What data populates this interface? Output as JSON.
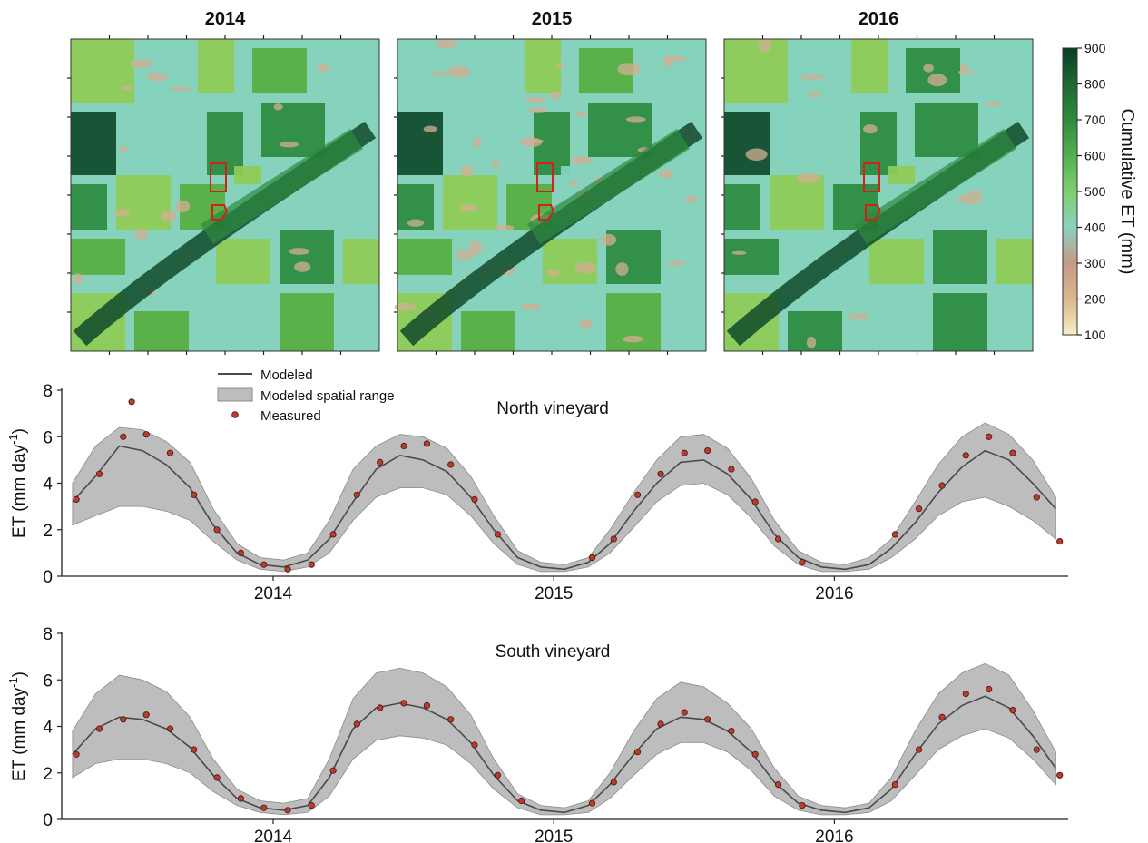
{
  "maps": {
    "panels": [
      {
        "title": "2014"
      },
      {
        "title": "2015"
      },
      {
        "title": "2016"
      }
    ],
    "colorbar": {
      "title": "Cumulative ET (mm)",
      "min": 100,
      "max": 900,
      "ticks": [
        "900",
        "800",
        "700",
        "600",
        "500",
        "400",
        "300",
        "200",
        "100"
      ],
      "colors": [
        "#f6f0c4",
        "#d9b78f",
        "#c79a84",
        "#88d2c0",
        "#7fcf6f",
        "#52b050",
        "#2f8b3c",
        "#1c6a32",
        "#0b3e25"
      ]
    },
    "outline_color": "#d32018",
    "palette": {
      "dark": "#0f4a2a",
      "mid": "#2c8a3e",
      "green": "#57ad3f",
      "light": "#8fcc55",
      "teal": "#86d2bd",
      "tan": "#d3ad93"
    }
  },
  "legend": {
    "modeled": "Modeled",
    "range": "Modeled spatial range",
    "measured": "Measured"
  },
  "colors": {
    "modeled_line": "#4a4a4a",
    "range_fill": "#bdbdbd",
    "range_edge": "#8a8a8a",
    "measured_fill": "#c0392b",
    "measured_edge": "#3a1a10"
  },
  "chart_data": [
    {
      "type": "line",
      "title": "North vineyard",
      "ylabel_main": "ET (mm day",
      "ylabel_sup": "-1",
      "ylabel_end": ")",
      "xlim": [
        "2013-04-01",
        "2016-10-31"
      ],
      "ylim": [
        0,
        8
      ],
      "yticks": [
        0,
        2,
        4,
        6,
        8
      ],
      "xtick_labels": [
        "2014",
        "2015",
        "2016"
      ],
      "xtick_dates": [
        "2014-01-01",
        "2015-01-01",
        "2016-01-01"
      ],
      "series": [
        {
          "name": "Modeled",
          "x": [
            "2013-04-15",
            "2013-05-15",
            "2013-06-15",
            "2013-07-15",
            "2013-08-15",
            "2013-09-15",
            "2013-10-15",
            "2013-11-15",
            "2013-12-15",
            "2014-01-15",
            "2014-02-15",
            "2014-03-15",
            "2014-04-15",
            "2014-05-15",
            "2014-06-15",
            "2014-07-15",
            "2014-08-15",
            "2014-09-15",
            "2014-10-15",
            "2014-11-15",
            "2014-12-15",
            "2015-01-15",
            "2015-02-15",
            "2015-03-15",
            "2015-04-15",
            "2015-05-15",
            "2015-06-15",
            "2015-07-15",
            "2015-08-15",
            "2015-09-15",
            "2015-10-15",
            "2015-11-15",
            "2015-12-15",
            "2016-01-15",
            "2016-02-15",
            "2016-03-15",
            "2016-04-15",
            "2016-05-15",
            "2016-06-15",
            "2016-07-15",
            "2016-08-15",
            "2016-09-15",
            "2016-10-15"
          ],
          "y": [
            3.2,
            4.3,
            5.6,
            5.4,
            4.8,
            3.8,
            2.2,
            1.0,
            0.5,
            0.4,
            0.7,
            1.6,
            3.2,
            4.6,
            5.2,
            5.0,
            4.5,
            3.4,
            2.0,
            0.8,
            0.4,
            0.3,
            0.6,
            1.4,
            2.8,
            4.0,
            4.9,
            5.0,
            4.4,
            3.3,
            1.8,
            0.8,
            0.4,
            0.3,
            0.5,
            1.2,
            2.3,
            3.6,
            4.7,
            5.4,
            5.0,
            4.0,
            2.9
          ]
        },
        {
          "name": "Modeled spatial range",
          "x": [
            "2013-04-15",
            "2013-05-15",
            "2013-06-15",
            "2013-07-15",
            "2013-08-15",
            "2013-09-15",
            "2013-10-15",
            "2013-11-15",
            "2013-12-15",
            "2014-01-15",
            "2014-02-15",
            "2014-03-15",
            "2014-04-15",
            "2014-05-15",
            "2014-06-15",
            "2014-07-15",
            "2014-08-15",
            "2014-09-15",
            "2014-10-15",
            "2014-11-15",
            "2014-12-15",
            "2015-01-15",
            "2015-02-15",
            "2015-03-15",
            "2015-04-15",
            "2015-05-15",
            "2015-06-15",
            "2015-07-15",
            "2015-08-15",
            "2015-09-15",
            "2015-10-15",
            "2015-11-15",
            "2015-12-15",
            "2016-01-15",
            "2016-02-15",
            "2016-03-15",
            "2016-04-15",
            "2016-05-15",
            "2016-06-15",
            "2016-07-15",
            "2016-08-15",
            "2016-09-15",
            "2016-10-15"
          ],
          "lower": [
            2.2,
            2.6,
            3.0,
            3.0,
            2.8,
            2.4,
            1.5,
            0.7,
            0.3,
            0.2,
            0.4,
            1.0,
            2.4,
            3.4,
            3.8,
            3.8,
            3.5,
            2.6,
            1.4,
            0.5,
            0.2,
            0.2,
            0.4,
            1.0,
            2.1,
            3.2,
            3.9,
            4.0,
            3.5,
            2.5,
            1.3,
            0.5,
            0.2,
            0.2,
            0.3,
            0.8,
            1.6,
            2.6,
            3.2,
            3.4,
            3.0,
            2.4,
            1.6
          ],
          "upper": [
            4.0,
            5.6,
            6.4,
            6.3,
            5.8,
            4.9,
            2.9,
            1.4,
            0.8,
            0.7,
            1.0,
            2.4,
            4.6,
            5.6,
            6.1,
            6.0,
            5.5,
            4.3,
            2.6,
            1.1,
            0.6,
            0.5,
            0.8,
            2.0,
            3.6,
            5.0,
            6.0,
            6.1,
            5.5,
            4.2,
            2.4,
            1.1,
            0.6,
            0.5,
            0.8,
            1.6,
            3.2,
            4.8,
            6.0,
            6.6,
            6.1,
            5.0,
            3.4
          ]
        },
        {
          "name": "Measured",
          "x": [
            "2013-04-20",
            "2013-05-20",
            "2013-06-20",
            "2013-07-01",
            "2013-07-20",
            "2013-08-20",
            "2013-09-20",
            "2013-10-20",
            "2013-11-20",
            "2013-12-20",
            "2014-01-20",
            "2014-02-20",
            "2014-03-20",
            "2014-04-20",
            "2014-05-20",
            "2014-06-20",
            "2014-07-20",
            "2014-08-20",
            "2014-09-20",
            "2014-10-20",
            "2015-02-20",
            "2015-03-20",
            "2015-04-20",
            "2015-05-20",
            "2015-06-20",
            "2015-07-20",
            "2015-08-20",
            "2015-09-20",
            "2015-10-20",
            "2015-11-20",
            "2016-03-20",
            "2016-04-20",
            "2016-05-20",
            "2016-06-20",
            "2016-07-20",
            "2016-08-20",
            "2016-09-20",
            "2016-10-20"
          ],
          "y": [
            3.3,
            4.4,
            6.0,
            7.5,
            6.1,
            5.3,
            3.5,
            2.0,
            1.0,
            0.5,
            0.3,
            0.5,
            1.8,
            3.5,
            4.9,
            5.6,
            5.7,
            4.8,
            3.3,
            1.8,
            0.8,
            1.6,
            3.5,
            4.4,
            5.3,
            5.4,
            4.6,
            3.2,
            1.6,
            0.6,
            1.8,
            2.9,
            3.9,
            5.2,
            6.0,
            5.3,
            3.4,
            1.5
          ]
        }
      ]
    },
    {
      "type": "line",
      "title": "South vineyard",
      "ylabel_main": "ET (mm day",
      "ylabel_sup": "-1",
      "ylabel_end": ")",
      "xlim": [
        "2013-04-01",
        "2016-10-31"
      ],
      "ylim": [
        0,
        8
      ],
      "yticks": [
        0,
        2,
        4,
        6,
        8
      ],
      "xtick_labels": [
        "2014",
        "2015",
        "2016"
      ],
      "xtick_dates": [
        "2014-01-01",
        "2015-01-01",
        "2016-01-01"
      ],
      "series": [
        {
          "name": "Modeled",
          "x": [
            "2013-04-15",
            "2013-05-15",
            "2013-06-15",
            "2013-07-15",
            "2013-08-15",
            "2013-09-15",
            "2013-10-15",
            "2013-11-15",
            "2013-12-15",
            "2014-01-15",
            "2014-02-15",
            "2014-03-15",
            "2014-04-15",
            "2014-05-15",
            "2014-06-15",
            "2014-07-15",
            "2014-08-15",
            "2014-09-15",
            "2014-10-15",
            "2014-11-15",
            "2014-12-15",
            "2015-01-15",
            "2015-02-15",
            "2015-03-15",
            "2015-04-15",
            "2015-05-15",
            "2015-06-15",
            "2015-07-15",
            "2015-08-15",
            "2015-09-15",
            "2015-10-15",
            "2015-11-15",
            "2015-12-15",
            "2016-01-15",
            "2016-02-15",
            "2016-03-15",
            "2016-04-15",
            "2016-05-15",
            "2016-06-15",
            "2016-07-15",
            "2016-08-15",
            "2016-09-15",
            "2016-10-15"
          ],
          "y": [
            2.8,
            3.9,
            4.4,
            4.3,
            3.9,
            3.1,
            1.9,
            0.9,
            0.5,
            0.4,
            0.6,
            1.8,
            3.9,
            4.8,
            5.0,
            4.8,
            4.3,
            3.3,
            1.9,
            0.8,
            0.4,
            0.3,
            0.6,
            1.5,
            2.8,
            3.9,
            4.4,
            4.3,
            3.8,
            2.9,
            1.6,
            0.7,
            0.4,
            0.3,
            0.5,
            1.3,
            2.8,
            4.1,
            4.9,
            5.3,
            4.8,
            3.6,
            2.2
          ]
        },
        {
          "name": "Modeled spatial range",
          "x": [
            "2013-04-15",
            "2013-05-15",
            "2013-06-15",
            "2013-07-15",
            "2013-08-15",
            "2013-09-15",
            "2013-10-15",
            "2013-11-15",
            "2013-12-15",
            "2014-01-15",
            "2014-02-15",
            "2014-03-15",
            "2014-04-15",
            "2014-05-15",
            "2014-06-15",
            "2014-07-15",
            "2014-08-15",
            "2014-09-15",
            "2014-10-15",
            "2014-11-15",
            "2014-12-15",
            "2015-01-15",
            "2015-02-15",
            "2015-03-15",
            "2015-04-15",
            "2015-05-15",
            "2015-06-15",
            "2015-07-15",
            "2015-08-15",
            "2015-09-15",
            "2015-10-15",
            "2015-11-15",
            "2015-12-15",
            "2016-01-15",
            "2016-02-15",
            "2016-03-15",
            "2016-04-15",
            "2016-05-15",
            "2016-06-15",
            "2016-07-15",
            "2016-08-15",
            "2016-09-15",
            "2016-10-15"
          ],
          "lower": [
            1.8,
            2.4,
            2.6,
            2.6,
            2.4,
            2.0,
            1.2,
            0.6,
            0.3,
            0.2,
            0.3,
            1.0,
            2.6,
            3.4,
            3.6,
            3.5,
            3.2,
            2.4,
            1.3,
            0.5,
            0.2,
            0.2,
            0.3,
            0.9,
            1.9,
            2.8,
            3.3,
            3.3,
            2.9,
            2.1,
            1.0,
            0.4,
            0.2,
            0.2,
            0.3,
            0.8,
            1.9,
            3.0,
            3.6,
            3.9,
            3.5,
            2.6,
            1.5
          ],
          "upper": [
            3.8,
            5.4,
            6.2,
            6.0,
            5.5,
            4.4,
            2.6,
            1.3,
            0.8,
            0.7,
            0.9,
            2.6,
            5.2,
            6.3,
            6.5,
            6.3,
            5.7,
            4.5,
            2.6,
            1.1,
            0.6,
            0.5,
            0.8,
            2.0,
            3.8,
            5.2,
            5.9,
            5.7,
            5.0,
            3.9,
            2.2,
            1.0,
            0.6,
            0.5,
            0.7,
            1.8,
            3.8,
            5.4,
            6.3,
            6.7,
            6.2,
            4.7,
            2.9
          ]
        },
        {
          "name": "Measured",
          "x": [
            "2013-04-20",
            "2013-05-20",
            "2013-06-20",
            "2013-07-20",
            "2013-08-20",
            "2013-09-20",
            "2013-10-20",
            "2013-11-20",
            "2013-12-20",
            "2014-01-20",
            "2014-02-20",
            "2014-03-20",
            "2014-04-20",
            "2014-05-20",
            "2014-06-20",
            "2014-07-20",
            "2014-08-20",
            "2014-09-20",
            "2014-10-20",
            "2014-11-20",
            "2015-02-20",
            "2015-03-20",
            "2015-04-20",
            "2015-05-20",
            "2015-06-20",
            "2015-07-20",
            "2015-08-20",
            "2015-09-20",
            "2015-10-20",
            "2015-11-20",
            "2016-03-20",
            "2016-04-20",
            "2016-05-20",
            "2016-06-20",
            "2016-07-20",
            "2016-08-20",
            "2016-09-20",
            "2016-10-20"
          ],
          "y": [
            2.8,
            3.9,
            4.3,
            4.5,
            3.9,
            3.0,
            1.8,
            0.9,
            0.5,
            0.4,
            0.6,
            2.1,
            4.1,
            4.8,
            5.0,
            4.9,
            4.3,
            3.2,
            1.9,
            0.8,
            0.7,
            1.6,
            2.9,
            4.1,
            4.6,
            4.3,
            3.8,
            2.8,
            1.5,
            0.6,
            1.5,
            3.0,
            4.4,
            5.4,
            5.6,
            4.7,
            3.0,
            1.9
          ]
        }
      ]
    }
  ]
}
